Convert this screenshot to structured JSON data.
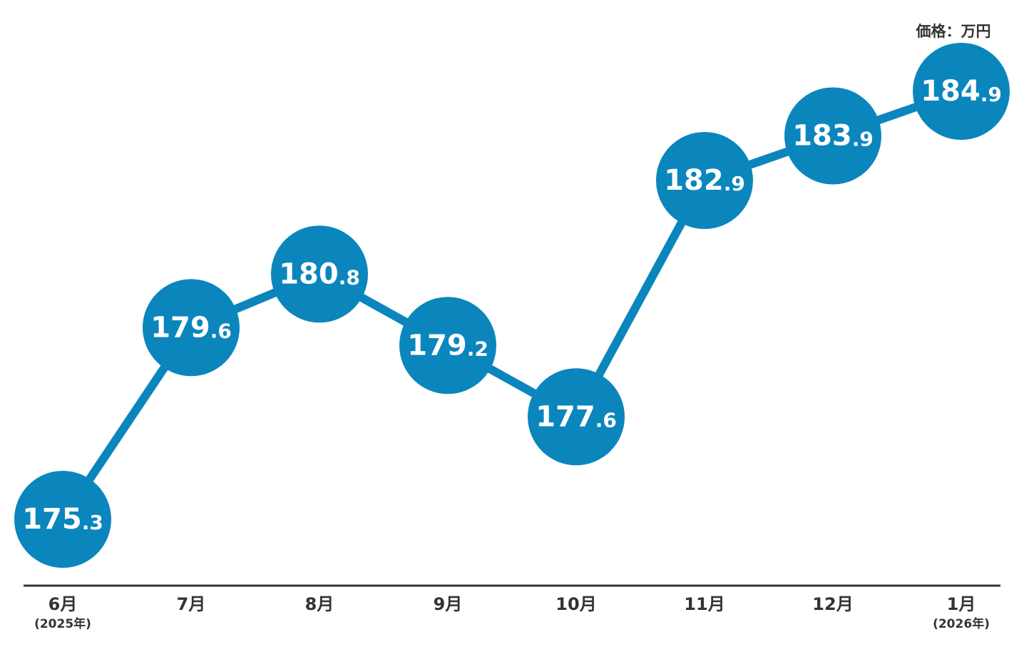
{
  "chart_data": {
    "type": "line",
    "unit_label": "価格：万円",
    "categories": [
      "6月",
      "7月",
      "8月",
      "9月",
      "10月",
      "11月",
      "12月",
      "1月"
    ],
    "x_sublabels": [
      "(2025年)",
      null,
      null,
      null,
      null,
      null,
      null,
      "(2026年)"
    ],
    "series": [
      {
        "name": "価格",
        "color": "#0a86bd",
        "values": [
          175.3,
          179.6,
          180.8,
          179.2,
          177.6,
          182.9,
          183.9,
          184.9
        ]
      }
    ]
  }
}
